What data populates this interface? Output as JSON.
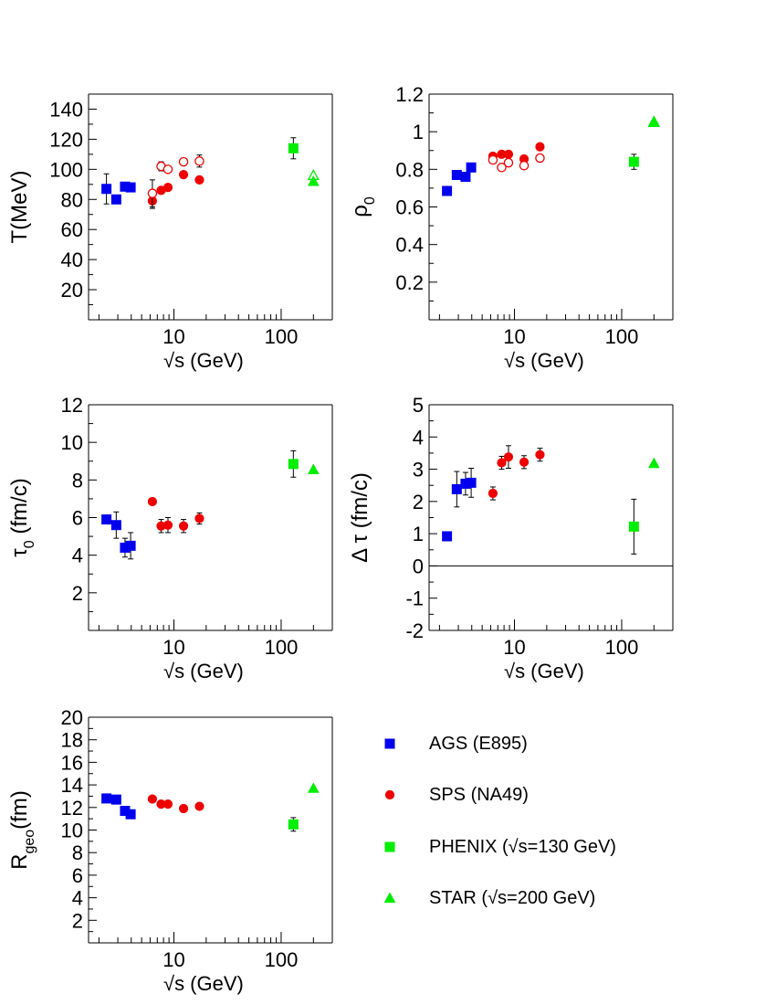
{
  "colors": {
    "ags": "#0000ee",
    "sps": "#ee0000",
    "phenix": "#00ee00",
    "star": "#00ee00"
  },
  "x_axis_label": "√s (GeV)",
  "x_tick_labels": [
    "10",
    "100"
  ],
  "legend": [
    {
      "label": "AGS (E895)",
      "marker": "square",
      "color": "#0000ee"
    },
    {
      "label": "SPS (NA49)",
      "marker": "circle",
      "color": "#ee0000"
    },
    {
      "label": "PHENIX (√s=130 GeV)",
      "marker": "square",
      "color": "#00ee00"
    },
    {
      "label": "STAR (√s=200 GeV)",
      "marker": "triangle",
      "color": "#00ee00"
    }
  ],
  "chart_data": [
    {
      "type": "scatter",
      "panel": "T",
      "ylabel": "T(MeV)",
      "xlabel": "√s (GeV)",
      "xscale": "log",
      "xlim": [
        1.6,
        300
      ],
      "ylim": [
        0,
        150
      ],
      "yticks": [
        20,
        40,
        60,
        80,
        100,
        120,
        140
      ],
      "series": [
        {
          "marker": "square",
          "color": "#0000ee",
          "filled": true,
          "points": [
            {
              "x": 2.35,
              "y": 87,
              "err": 10
            },
            {
              "x": 2.9,
              "y": 80
            },
            {
              "x": 3.5,
              "y": 88.5
            },
            {
              "x": 3.95,
              "y": 88
            }
          ]
        },
        {
          "marker": "circle",
          "color": "#ee0000",
          "filled": true,
          "points": [
            {
              "x": 6.3,
              "y": 79,
              "err": 5
            },
            {
              "x": 7.6,
              "y": 86
            },
            {
              "x": 8.8,
              "y": 88
            },
            {
              "x": 12.3,
              "y": 96.5
            },
            {
              "x": 17.3,
              "y": 93
            }
          ]
        },
        {
          "marker": "circle",
          "color": "#ee0000",
          "filled": false,
          "points": [
            {
              "x": 6.3,
              "y": 84,
              "err": 9
            },
            {
              "x": 7.6,
              "y": 102,
              "err": 3
            },
            {
              "x": 8.8,
              "y": 100
            },
            {
              "x": 12.3,
              "y": 105
            },
            {
              "x": 17.3,
              "y": 105.5,
              "err": 4
            }
          ]
        },
        {
          "marker": "square",
          "color": "#00ee00",
          "filled": true,
          "points": [
            {
              "x": 130,
              "y": 114,
              "err": 7
            }
          ]
        },
        {
          "marker": "triangle",
          "color": "#00ee00",
          "filled": false,
          "points": [
            {
              "x": 200,
              "y": 96
            }
          ]
        },
        {
          "marker": "triangle",
          "color": "#00ee00",
          "filled": true,
          "points": [
            {
              "x": 200,
              "y": 92
            }
          ]
        }
      ]
    },
    {
      "type": "scatter",
      "panel": "rho0",
      "ylabel": "ρ0",
      "xlabel": "√s (GeV)",
      "xscale": "log",
      "xlim": [
        1.6,
        300
      ],
      "ylim": [
        0,
        1.2
      ],
      "yticks": [
        0.2,
        0.4,
        0.6,
        0.8,
        1,
        1.2
      ],
      "series": [
        {
          "marker": "square",
          "color": "#0000ee",
          "filled": true,
          "points": [
            {
              "x": 2.35,
              "y": 0.685
            },
            {
              "x": 2.9,
              "y": 0.77
            },
            {
              "x": 3.5,
              "y": 0.76
            },
            {
              "x": 3.95,
              "y": 0.81
            }
          ]
        },
        {
          "marker": "circle",
          "color": "#ee0000",
          "filled": true,
          "points": [
            {
              "x": 6.3,
              "y": 0.87
            },
            {
              "x": 7.6,
              "y": 0.88
            },
            {
              "x": 8.8,
              "y": 0.88
            },
            {
              "x": 12.3,
              "y": 0.855
            },
            {
              "x": 17.3,
              "y": 0.92
            }
          ]
        },
        {
          "marker": "circle",
          "color": "#ee0000",
          "filled": false,
          "points": [
            {
              "x": 6.3,
              "y": 0.85
            },
            {
              "x": 7.6,
              "y": 0.81
            },
            {
              "x": 8.8,
              "y": 0.835
            },
            {
              "x": 12.3,
              "y": 0.82
            },
            {
              "x": 17.3,
              "y": 0.86
            }
          ]
        },
        {
          "marker": "square",
          "color": "#00ee00",
          "filled": true,
          "points": [
            {
              "x": 130,
              "y": 0.84,
              "err": 0.04
            }
          ]
        },
        {
          "marker": "triangle",
          "color": "#00ee00",
          "filled": false,
          "points": [
            {
              "x": 200,
              "y": 1.05
            }
          ]
        },
        {
          "marker": "triangle",
          "color": "#00ee00",
          "filled": true,
          "points": [
            {
              "x": 200,
              "y": 1.055
            }
          ]
        }
      ]
    },
    {
      "type": "scatter",
      "panel": "tau0",
      "ylabel": "τ0 (fm/c)",
      "xlabel": "√s (GeV)",
      "xscale": "log",
      "xlim": [
        1.6,
        300
      ],
      "ylim": [
        0,
        12
      ],
      "yticks": [
        2,
        4,
        6,
        8,
        10,
        12
      ],
      "series": [
        {
          "marker": "square",
          "color": "#0000ee",
          "filled": true,
          "points": [
            {
              "x": 2.35,
              "y": 5.9
            },
            {
              "x": 2.9,
              "y": 5.6,
              "err": 0.7
            },
            {
              "x": 3.5,
              "y": 4.4,
              "err": 0.5
            },
            {
              "x": 3.95,
              "y": 4.5,
              "err": 0.7
            }
          ]
        },
        {
          "marker": "circle",
          "color": "#ee0000",
          "filled": true,
          "points": [
            {
              "x": 6.3,
              "y": 6.85
            },
            {
              "x": 7.6,
              "y": 5.55,
              "err": 0.35
            },
            {
              "x": 8.8,
              "y": 5.6,
              "err": 0.4
            },
            {
              "x": 12.3,
              "y": 5.55,
              "err": 0.35
            },
            {
              "x": 17.3,
              "y": 5.95,
              "err": 0.3
            }
          ]
        },
        {
          "marker": "square",
          "color": "#00ee00",
          "filled": true,
          "points": [
            {
              "x": 130,
              "y": 8.85,
              "err": 0.7
            }
          ]
        },
        {
          "marker": "triangle",
          "color": "#00ee00",
          "filled": true,
          "points": [
            {
              "x": 200,
              "y": 8.55
            }
          ]
        }
      ]
    },
    {
      "type": "scatter",
      "panel": "dtau",
      "ylabel": "Δ τ (fm/c)",
      "xlabel": "√s (GeV)",
      "xscale": "log",
      "xlim": [
        1.6,
        300
      ],
      "ylim": [
        -2,
        5
      ],
      "yticks": [
        -2,
        -1,
        0,
        1,
        2,
        3,
        4,
        5
      ],
      "zero_line": true,
      "series": [
        {
          "marker": "square",
          "color": "#0000ee",
          "filled": true,
          "points": [
            {
              "x": 2.35,
              "y": 0.92
            },
            {
              "x": 2.9,
              "y": 2.38,
              "err": 0.55
            },
            {
              "x": 3.5,
              "y": 2.55,
              "err": 0.35
            },
            {
              "x": 3.95,
              "y": 2.58,
              "err": 0.45
            }
          ]
        },
        {
          "marker": "circle",
          "color": "#ee0000",
          "filled": true,
          "points": [
            {
              "x": 6.3,
              "y": 2.25,
              "err": 0.2
            },
            {
              "x": 7.6,
              "y": 3.2,
              "err": 0.2
            },
            {
              "x": 8.8,
              "y": 3.38,
              "err": 0.35
            },
            {
              "x": 12.3,
              "y": 3.22,
              "err": 0.2
            },
            {
              "x": 17.3,
              "y": 3.45,
              "err": 0.2
            }
          ]
        },
        {
          "marker": "square",
          "color": "#00ee00",
          "filled": true,
          "points": [
            {
              "x": 130,
              "y": 1.22,
              "err": 0.85
            }
          ]
        },
        {
          "marker": "triangle",
          "color": "#00ee00",
          "filled": true,
          "points": [
            {
              "x": 200,
              "y": 3.18
            }
          ]
        }
      ]
    },
    {
      "type": "scatter",
      "panel": "Rgeo",
      "ylabel": "Rgeo(fm)",
      "xlabel": "√s (GeV)",
      "xscale": "log",
      "xlim": [
        1.6,
        300
      ],
      "ylim": [
        0,
        20
      ],
      "yticks": [
        2,
        4,
        6,
        8,
        10,
        12,
        14,
        16,
        18,
        20
      ],
      "series": [
        {
          "marker": "square",
          "color": "#0000ee",
          "filled": true,
          "points": [
            {
              "x": 2.35,
              "y": 12.8
            },
            {
              "x": 2.9,
              "y": 12.7
            },
            {
              "x": 3.5,
              "y": 11.7
            },
            {
              "x": 3.95,
              "y": 11.4
            }
          ]
        },
        {
          "marker": "circle",
          "color": "#ee0000",
          "filled": true,
          "points": [
            {
              "x": 6.3,
              "y": 12.75
            },
            {
              "x": 7.6,
              "y": 12.3
            },
            {
              "x": 8.8,
              "y": 12.3
            },
            {
              "x": 12.3,
              "y": 11.9
            },
            {
              "x": 17.3,
              "y": 12.1
            }
          ]
        },
        {
          "marker": "square",
          "color": "#00ee00",
          "filled": true,
          "points": [
            {
              "x": 130,
              "y": 10.5,
              "err": 0.6
            }
          ]
        },
        {
          "marker": "triangle",
          "color": "#00ee00",
          "filled": true,
          "points": [
            {
              "x": 200,
              "y": 13.7
            }
          ]
        }
      ]
    }
  ]
}
